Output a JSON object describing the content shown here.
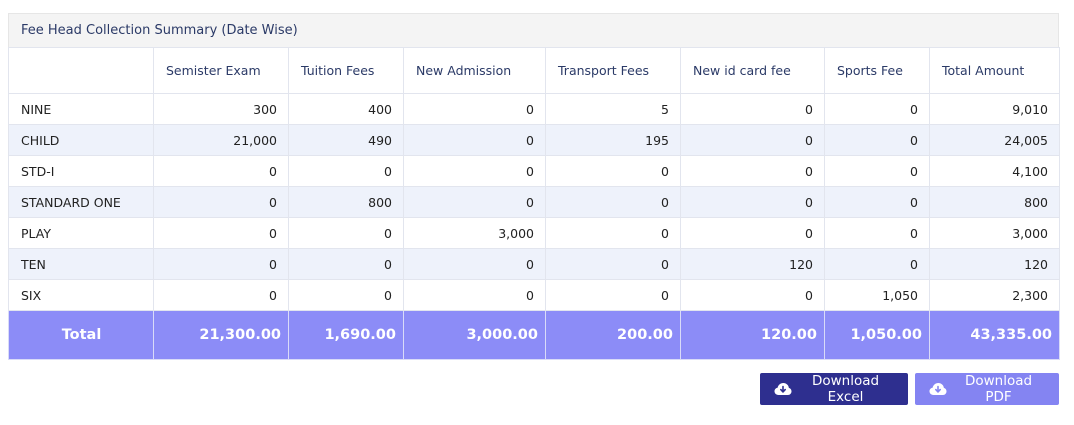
{
  "panel": {
    "title": "Fee Head Collection Summary (Date Wise)"
  },
  "table": {
    "columns": [
      "",
      "Semister Exam",
      "Tuition Fees",
      "New Admission",
      "Transport Fees",
      "New id card fee",
      "Sports Fee",
      "Total Amount"
    ],
    "rows": [
      [
        "NINE",
        "300",
        "400",
        "0",
        "5",
        "0",
        "0",
        "9,010"
      ],
      [
        "CHILD",
        "21,000",
        "490",
        "0",
        "195",
        "0",
        "0",
        "24,005"
      ],
      [
        "STD-I",
        "0",
        "0",
        "0",
        "0",
        "0",
        "0",
        "4,100"
      ],
      [
        "STANDARD ONE",
        "0",
        "800",
        "0",
        "0",
        "0",
        "0",
        "800"
      ],
      [
        "PLAY",
        "0",
        "0",
        "3,000",
        "0",
        "0",
        "0",
        "3,000"
      ],
      [
        "TEN",
        "0",
        "0",
        "0",
        "0",
        "120",
        "0",
        "120"
      ],
      [
        "SIX",
        "0",
        "0",
        "0",
        "0",
        "0",
        "1,050",
        "2,300"
      ]
    ],
    "footer": [
      "Total",
      "21,300.00",
      "1,690.00",
      "3,000.00",
      "200.00",
      "120.00",
      "1,050.00",
      "43,335.00"
    ]
  },
  "actions": {
    "excel_label": "Download Excel",
    "pdf_label": "Download PDF",
    "excel_icon": "cloud-download-icon",
    "pdf_icon": "cloud-download-icon"
  },
  "colors": {
    "footer_bg": "#8c8cf7",
    "excel_bg": "#2e2f8f",
    "pdf_bg": "#8484f2",
    "striped_row": "#eef2fb"
  }
}
